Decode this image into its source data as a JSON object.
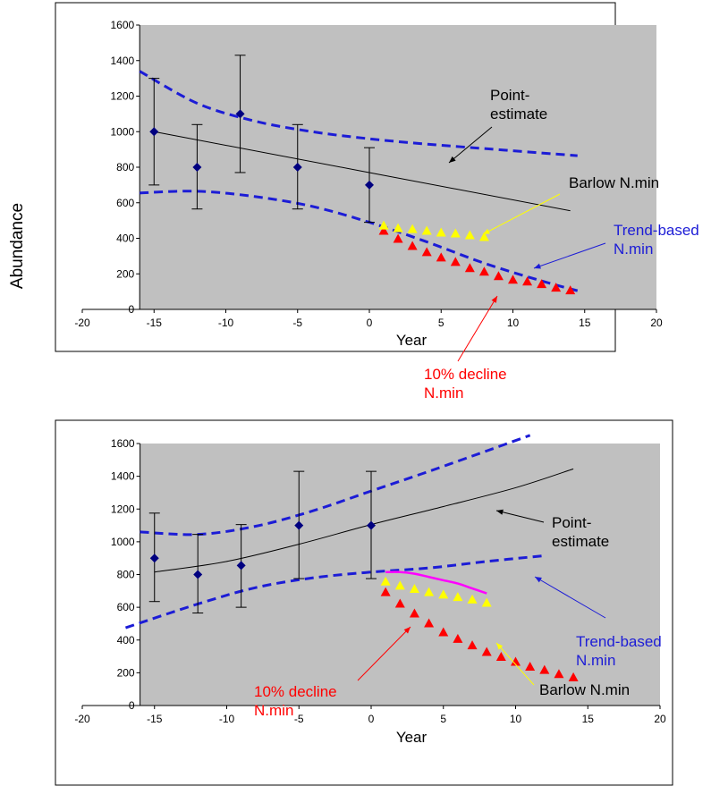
{
  "shared": {
    "ylabel": "Abundance"
  },
  "colors": {
    "plot_bg": "#c0c0c0",
    "ci": "#1c1cd6",
    "point": "#000080",
    "red": "#ff0000",
    "yellow": "#ffff00",
    "magenta": "#ff00ff"
  },
  "chart_data": [
    {
      "type": "scatter",
      "xlabel": "Year",
      "xlim": [
        -20,
        20
      ],
      "ylim": [
        0,
        1600
      ],
      "xticks": [
        "-20",
        "-15",
        "-10",
        "-5",
        "0",
        "5",
        "10",
        "15",
        "20"
      ],
      "yticks": [
        "0",
        "200",
        "400",
        "600",
        "800",
        "1000",
        "1200",
        "1400",
        "1600"
      ],
      "observations": {
        "x": [
          -15,
          -12,
          -9,
          -5,
          0
        ],
        "y": [
          1000,
          800,
          1100,
          800,
          700
        ],
        "err_low": [
          700,
          565,
          770,
          565,
          490
        ],
        "err_high": [
          1300,
          1040,
          1430,
          1040,
          910
        ]
      },
      "point_estimate": {
        "x": [
          -15,
          14
        ],
        "y": [
          1000,
          555
        ]
      },
      "ci_upper": {
        "x": [
          -16,
          -12,
          -8,
          -4,
          0,
          4,
          8,
          12,
          14.5
        ],
        "y": [
          1340,
          1160,
          1060,
          1000,
          960,
          930,
          905,
          880,
          865
        ]
      },
      "ci_lower": {
        "x": [
          -16,
          -12,
          -8,
          -4,
          0,
          4,
          8,
          12,
          14.5
        ],
        "y": [
          655,
          665,
          635,
          580,
          490,
          380,
          260,
          160,
          105
        ]
      },
      "decline": {
        "x": [
          1,
          2,
          3,
          4,
          5,
          6,
          7,
          8,
          9,
          10,
          11,
          12,
          13,
          14
        ],
        "y": [
          440,
          395,
          355,
          320,
          290,
          265,
          230,
          210,
          185,
          165,
          155,
          140,
          120,
          105
        ]
      },
      "barlow": {
        "x": [
          1,
          2,
          3,
          4,
          5,
          6,
          7,
          8
        ],
        "y": [
          470,
          455,
          450,
          440,
          430,
          425,
          415,
          405
        ]
      },
      "annotations": [
        {
          "lines": [
            "Point-",
            "estimate"
          ],
          "color": "black"
        },
        {
          "lines": [
            "Barlow N.min"
          ],
          "color": "black"
        },
        {
          "lines": [
            "Trend-based",
            "N.min"
          ],
          "color": "blue"
        },
        {
          "lines": [
            "10% decline",
            "N.min"
          ],
          "color": "red"
        }
      ]
    },
    {
      "type": "scatter",
      "xlabel": "Year",
      "xlim": [
        -20,
        20
      ],
      "ylim": [
        0,
        1600
      ],
      "xticks": [
        "-20",
        "-15",
        "-10",
        "-5",
        "0",
        "5",
        "10",
        "15",
        "20"
      ],
      "yticks": [
        "0",
        "200",
        "400",
        "600",
        "800",
        "1000",
        "1200",
        "1400",
        "1600"
      ],
      "observations": {
        "x": [
          -15,
          -12,
          -9,
          -5,
          0
        ],
        "y": [
          900,
          800,
          855,
          1100,
          1100
        ],
        "err_low": [
          635,
          565,
          600,
          775,
          775
        ],
        "err_high": [
          1175,
          1045,
          1105,
          1430,
          1430
        ]
      },
      "point_estimate": {
        "x": [
          -15,
          -10,
          -5,
          0,
          5,
          10,
          14
        ],
        "y": [
          815,
          880,
          985,
          1105,
          1215,
          1330,
          1445
        ]
      },
      "ci_upper": {
        "x": [
          -16,
          -12,
          -8,
          -4,
          0,
          4,
          8,
          11
        ],
        "y": [
          1060,
          1045,
          1095,
          1190,
          1310,
          1430,
          1555,
          1650
        ]
      },
      "ci_lower": {
        "x": [
          -17,
          -12,
          -8,
          -4,
          0,
          4,
          8,
          12
        ],
        "y": [
          475,
          620,
          720,
          780,
          815,
          840,
          880,
          915
        ]
      },
      "magenta_curve": {
        "x": [
          1,
          2,
          3,
          4,
          5,
          6,
          7,
          8
        ],
        "y": [
          815,
          815,
          805,
          785,
          765,
          745,
          715,
          685
        ]
      },
      "decline": {
        "x": [
          1,
          2,
          3,
          4,
          5,
          6,
          7,
          8,
          9,
          10,
          11,
          12,
          13,
          14
        ],
        "y": [
          690,
          620,
          560,
          500,
          445,
          405,
          365,
          325,
          295,
          265,
          235,
          215,
          190,
          170
        ]
      },
      "barlow": {
        "x": [
          1,
          2,
          3,
          4,
          5,
          6,
          7,
          8
        ],
        "y": [
          755,
          730,
          710,
          690,
          675,
          660,
          645,
          625
        ]
      },
      "annotations": [
        {
          "lines": [
            "Point-",
            "estimate"
          ],
          "color": "black"
        },
        {
          "lines": [
            "Trend-based",
            "N.min"
          ],
          "color": "blue"
        },
        {
          "lines": [
            "Barlow N.min"
          ],
          "color": "black"
        },
        {
          "lines": [
            "10% decline",
            "N.min"
          ],
          "color": "red"
        }
      ]
    }
  ]
}
